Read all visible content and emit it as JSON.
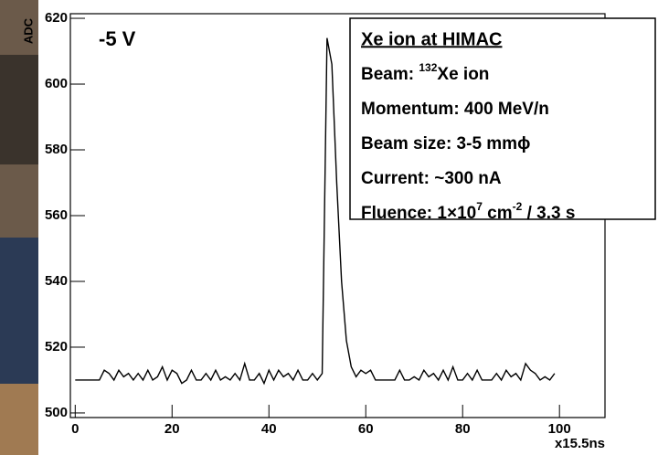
{
  "chart_data": {
    "type": "line",
    "ylabel": "ADC",
    "xlabel": "x15.5ns",
    "annotation": "-5 V",
    "info_box": {
      "title": "Xe ion at HIMAC",
      "lines": [
        [
          "Beam: ",
          "132",
          "Xe ion"
        ],
        [
          "Momentum: 400 MeV/n"
        ],
        [
          "Beam size: 3-5 mmϕ"
        ],
        [
          "Current: ~300 nA"
        ],
        [
          "Fluence: 1×10",
          "7",
          " cm",
          "-2",
          " / 3.3 s"
        ]
      ]
    },
    "x": [
      0,
      1,
      2,
      3,
      4,
      5,
      6,
      7,
      8,
      9,
      10,
      11,
      12,
      13,
      14,
      15,
      16,
      17,
      18,
      19,
      20,
      21,
      22,
      23,
      24,
      25,
      26,
      27,
      28,
      29,
      30,
      31,
      32,
      33,
      34,
      35,
      36,
      37,
      38,
      39,
      40,
      41,
      42,
      43,
      44,
      45,
      46,
      47,
      48,
      49,
      50,
      51,
      52,
      53,
      54,
      55,
      56,
      57,
      58,
      59,
      60,
      61,
      62,
      63,
      64,
      65,
      66,
      67,
      68,
      69,
      70,
      71,
      72,
      73,
      74,
      75,
      76,
      77,
      78,
      79,
      80,
      81,
      82,
      83,
      84,
      85,
      86,
      87,
      88,
      89,
      90,
      91,
      92,
      93,
      94,
      95,
      96,
      97,
      98,
      99
    ],
    "values": [
      510,
      510,
      510,
      510,
      510,
      510,
      513,
      512,
      510,
      513,
      511,
      512,
      510,
      512,
      510,
      513,
      510,
      511,
      514,
      510,
      513,
      512,
      509,
      510,
      513,
      510,
      510,
      512,
      510,
      513,
      510,
      511,
      510,
      512,
      510,
      515,
      510,
      510,
      512,
      509,
      513,
      510,
      513,
      511,
      512,
      510,
      513,
      510,
      510,
      512,
      510,
      512,
      614,
      606,
      570,
      540,
      522,
      514,
      511,
      513,
      512,
      513,
      510,
      510,
      510,
      510,
      510,
      513,
      510,
      510,
      511,
      510,
      513,
      511,
      512,
      510,
      513,
      510,
      514,
      510,
      510,
      512,
      510,
      513,
      510,
      510,
      510,
      512,
      510,
      513,
      511,
      512,
      510,
      515,
      513,
      512,
      510,
      511,
      510,
      512
    ],
    "color": "#000000",
    "xlim": [
      -1,
      109.4
    ],
    "xticks": [
      0,
      20,
      40,
      60,
      80,
      100
    ],
    "ylim": [
      498.6,
      621.4
    ],
    "yticks": [
      500,
      520,
      540,
      560,
      580,
      600,
      620
    ],
    "grid": false
  }
}
